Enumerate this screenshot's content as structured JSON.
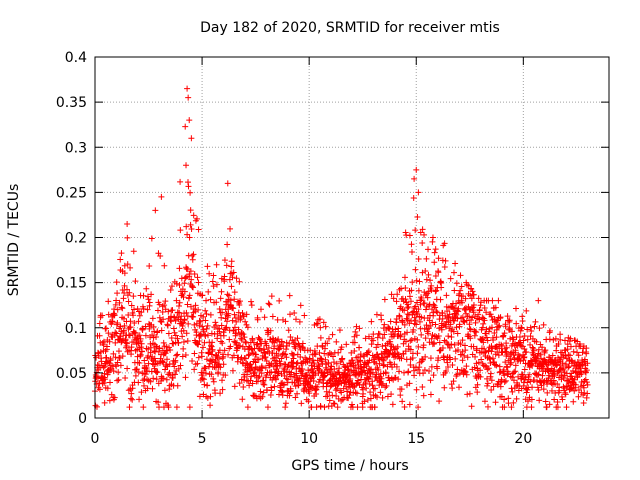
{
  "chart_data": {
    "type": "scatter",
    "title": "Day 182 of 2020, SRMTID for receiver mtis",
    "xlabel": "GPS time / hours",
    "ylabel": "SRMTID / TECUs",
    "xlim": [
      0,
      24
    ],
    "ylim": [
      0,
      0.4
    ],
    "xticks": [
      0,
      5,
      10,
      15,
      20
    ],
    "xtick_labels": [
      "0",
      "5",
      "10",
      "15",
      "20"
    ],
    "yticks": [
      0,
      0.05,
      0.1,
      0.15,
      0.2,
      0.25,
      0.3,
      0.35,
      0.4
    ],
    "ytick_labels": [
      "0",
      "0.05",
      "0.1",
      "0.15",
      "0.2",
      "0.25",
      "0.3",
      "0.35",
      "0.4"
    ],
    "grid": true,
    "marker": "+",
    "color": "#ff0000",
    "series_name": "SRMTID",
    "point_count": 2600,
    "data_range_x": [
      0,
      23
    ],
    "profile": {
      "x": [
        0,
        0.5,
        1,
        1.5,
        2,
        2.5,
        3,
        3.5,
        4,
        4.3,
        4.6,
        5,
        5.5,
        6,
        6.3,
        6.7,
        7,
        8,
        9,
        10,
        11,
        12,
        13,
        14,
        14.5,
        15,
        15.5,
        16,
        16.5,
        17,
        18,
        19,
        20,
        20.5,
        21,
        22,
        23
      ],
      "median": [
        0.05,
        0.06,
        0.08,
        0.09,
        0.07,
        0.08,
        0.07,
        0.07,
        0.1,
        0.13,
        0.12,
        0.08,
        0.07,
        0.09,
        0.1,
        0.09,
        0.06,
        0.055,
        0.055,
        0.05,
        0.045,
        0.04,
        0.05,
        0.07,
        0.09,
        0.11,
        0.12,
        0.11,
        0.1,
        0.1,
        0.09,
        0.07,
        0.06,
        0.06,
        0.055,
        0.05,
        0.05
      ],
      "max": [
        0.1,
        0.13,
        0.16,
        0.21,
        0.17,
        0.2,
        0.25,
        0.19,
        0.27,
        0.36,
        0.25,
        0.2,
        0.16,
        0.25,
        0.21,
        0.18,
        0.13,
        0.14,
        0.14,
        0.12,
        0.1,
        0.1,
        0.11,
        0.15,
        0.22,
        0.27,
        0.2,
        0.2,
        0.19,
        0.16,
        0.13,
        0.13,
        0.12,
        0.13,
        0.1,
        0.09,
        0.08
      ]
    },
    "highlights": [
      {
        "x": 4.3,
        "y": 0.365
      },
      {
        "x": 4.35,
        "y": 0.355
      },
      {
        "x": 4.4,
        "y": 0.33
      },
      {
        "x": 4.5,
        "y": 0.31
      },
      {
        "x": 4.25,
        "y": 0.28
      },
      {
        "x": 3.1,
        "y": 0.245
      },
      {
        "x": 6.2,
        "y": 0.26
      },
      {
        "x": 1.5,
        "y": 0.215
      },
      {
        "x": 15.0,
        "y": 0.275
      },
      {
        "x": 14.9,
        "y": 0.265
      },
      {
        "x": 15.1,
        "y": 0.25
      },
      {
        "x": 20.7,
        "y": 0.13
      },
      {
        "x": 12.0,
        "y": 0.015
      },
      {
        "x": 14.7,
        "y": 0.015
      }
    ]
  }
}
